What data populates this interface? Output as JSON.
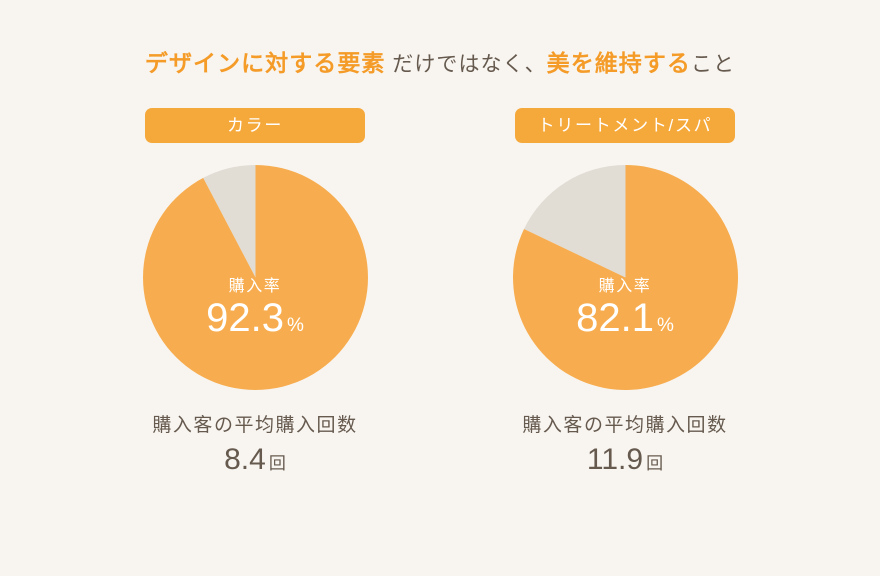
{
  "title": {
    "lead_accent": "デザインに対する要素",
    "mid": " だけではなく、",
    "accent2": "美を維持する",
    "tail": "こと"
  },
  "colors": {
    "accent": "#f49b28",
    "pie_fill": "#f7ad4f",
    "pie_remainder": "#e1dcd4",
    "tag_bg": "#f6a93b",
    "tag_text": "#ffffff",
    "text": "#665a4e",
    "bg": "#f8f5f1"
  },
  "pie": {
    "radius": 112.5,
    "start_angle_deg": -90
  },
  "charts": [
    {
      "tag": "カラー",
      "rate_caption": "購入率",
      "rate_value": "92.3",
      "rate_unit": "%",
      "percent": 92.3,
      "sub_caption": "購入客の平均購入回数",
      "sub_value": "8.4",
      "sub_unit": "回"
    },
    {
      "tag": "トリートメント/スパ",
      "rate_caption": "購入率",
      "rate_value": "82.1",
      "rate_unit": "%",
      "percent": 82.1,
      "sub_caption": "購入客の平均購入回数",
      "sub_value": "11.9",
      "sub_unit": "回"
    }
  ]
}
